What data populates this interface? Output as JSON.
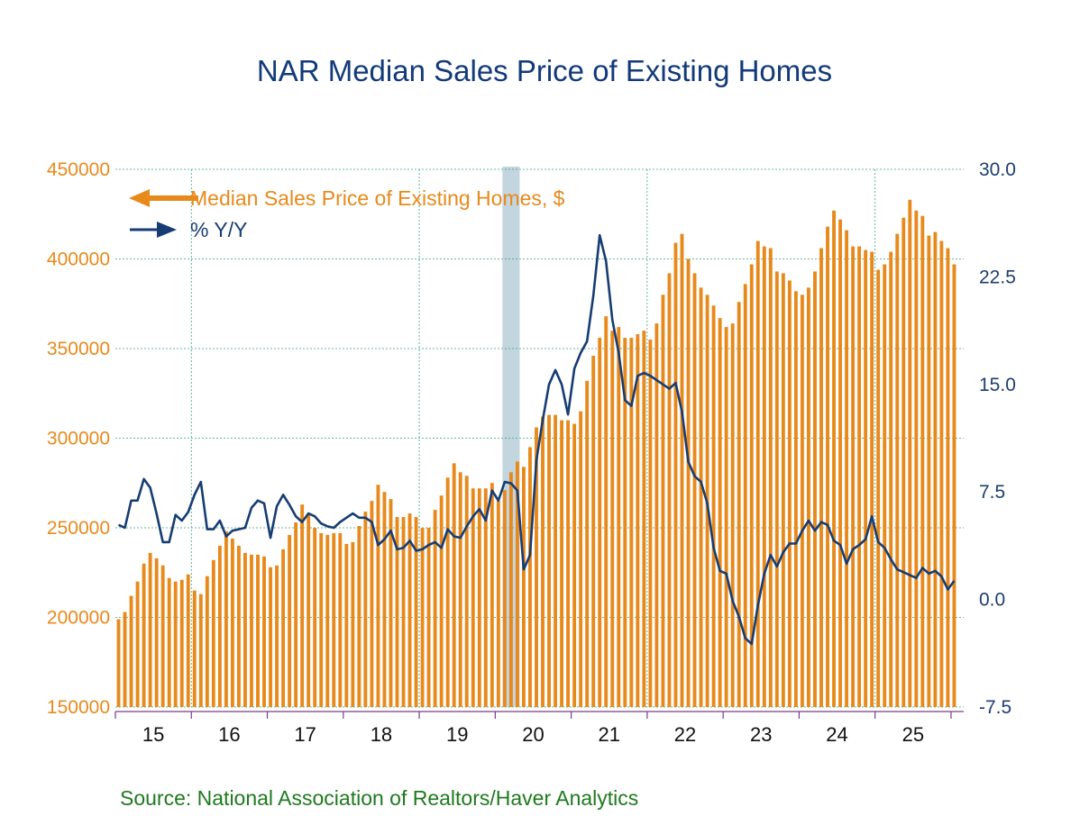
{
  "chart_data": {
    "type": "bar",
    "title": "NAR Median Sales Price of Existing Homes",
    "source": "Source:  National Association of Realtors/Haver Analytics",
    "recession_shade": {
      "start": "2020-02",
      "end": "2020-04"
    },
    "colors": {
      "bars": "#e8891b",
      "line": "#163d73",
      "grid": "#3aa37a",
      "shade": "#c3d5de",
      "left_axis": "#e8891b",
      "right_axis": "#1d3e6e",
      "title": "#123a7a",
      "source": "#1e7a1e",
      "x_axis": "#7a3a8a"
    },
    "left_axis": {
      "ylim": [
        150000,
        450000
      ],
      "ticks": [
        "450000",
        "400000",
        "350000",
        "300000",
        "250000",
        "200000",
        "150000"
      ],
      "tick_values": [
        450000,
        400000,
        350000,
        300000,
        250000,
        200000,
        150000
      ]
    },
    "right_axis": {
      "ylim": [
        -7.5,
        30.0
      ],
      "ticks": [
        "30.0",
        "22.5",
        "15.0",
        "7.5",
        "0.0",
        "-7.5"
      ],
      "tick_values": [
        30.0,
        22.5,
        15.0,
        7.5,
        0.0,
        -7.5
      ]
    },
    "x_axis": {
      "start": "2015-01",
      "labels": [
        "15",
        "16",
        "17",
        "18",
        "19",
        "20",
        "21",
        "22",
        "23",
        "24",
        "25"
      ]
    },
    "legend": {
      "placement": "top-left",
      "entries": [
        {
          "label": "Median Sales Price of Existing Homes, $",
          "color": "#e8891b",
          "arrow": "left"
        },
        {
          "label": "% Y/Y",
          "color": "#163d73",
          "arrow": "right"
        }
      ]
    },
    "series": [
      {
        "name": "Median Sales Price of Existing Homes, $",
        "type": "bar",
        "axis": "left",
        "values": [
          199000,
          203000,
          212000,
          220000,
          230000,
          236000,
          233000,
          229000,
          222000,
          220000,
          221000,
          224000,
          215000,
          213000,
          223000,
          232000,
          240000,
          248000,
          244000,
          240000,
          236000,
          235000,
          235000,
          234000,
          228000,
          229000,
          238000,
          246000,
          253000,
          263000,
          257000,
          250000,
          247000,
          246000,
          247000,
          247000,
          241000,
          242000,
          251000,
          259000,
          265000,
          274000,
          270000,
          266000,
          256000,
          256000,
          258000,
          256000,
          250000,
          250000,
          260000,
          268000,
          278000,
          286000,
          281000,
          279000,
          272000,
          272000,
          272000,
          275000,
          265000,
          271000,
          281000,
          287000,
          284000,
          295000,
          306000,
          312000,
          313000,
          313000,
          310000,
          310000,
          308000,
          315000,
          332000,
          346000,
          356000,
          368000,
          360000,
          362000,
          356000,
          356000,
          358000,
          360000,
          355000,
          364000,
          380000,
          392000,
          409000,
          414000,
          400000,
          392000,
          384000,
          380000,
          374000,
          367000,
          362000,
          364000,
          376000,
          386000,
          397000,
          410000,
          407000,
          406000,
          393000,
          392000,
          388000,
          382000,
          380000,
          384000,
          393000,
          406000,
          418000,
          427000,
          422000,
          416000,
          407000,
          407000,
          405000,
          404000,
          394000,
          397000,
          404000,
          414000,
          423000,
          433000,
          427000,
          424000,
          413000,
          415000,
          410000,
          406000,
          397000
        ]
      },
      {
        "name": "% Y/Y",
        "type": "line",
        "axis": "right",
        "values": [
          5.2,
          5.0,
          6.9,
          6.9,
          8.4,
          7.8,
          6.0,
          4.0,
          4.0,
          5.9,
          5.5,
          6.1,
          7.3,
          8.2,
          4.9,
          4.9,
          5.5,
          4.4,
          4.8,
          4.9,
          5.0,
          6.4,
          6.9,
          6.7,
          4.3,
          6.5,
          7.3,
          6.6,
          5.8,
          5.4,
          6.0,
          5.8,
          5.3,
          5.1,
          5.0,
          5.4,
          5.7,
          6.0,
          5.7,
          5.7,
          5.4,
          3.8,
          4.2,
          4.8,
          3.5,
          3.6,
          4.1,
          3.4,
          3.5,
          3.8,
          4.0,
          3.6,
          4.9,
          4.4,
          4.3,
          5.1,
          5.8,
          6.3,
          5.5,
          7.6,
          6.9,
          8.2,
          8.1,
          7.6,
          2.1,
          3.1,
          9.7,
          12.5,
          15.0,
          16.0,
          15.0,
          12.9,
          16.1,
          17.2,
          18.0,
          21.2,
          25.4,
          23.6,
          19.5,
          17.2,
          13.9,
          13.5,
          15.6,
          15.8,
          15.6,
          15.3,
          15.0,
          14.7,
          15.1,
          13.1,
          9.6,
          8.6,
          8.2,
          6.7,
          3.6,
          2.0,
          1.8,
          -0.1,
          -1.2,
          -2.7,
          -3.1,
          -0.4,
          1.8,
          3.1,
          2.3,
          3.3,
          3.9,
          3.9,
          4.8,
          5.5,
          4.8,
          5.4,
          5.2,
          4.1,
          3.8,
          2.5,
          3.5,
          3.8,
          4.2,
          5.8,
          4.0,
          3.6,
          2.8,
          2.1,
          1.9,
          1.7,
          1.5,
          2.2,
          1.8,
          2.0,
          1.6,
          0.7,
          1.3
        ]
      }
    ]
  }
}
